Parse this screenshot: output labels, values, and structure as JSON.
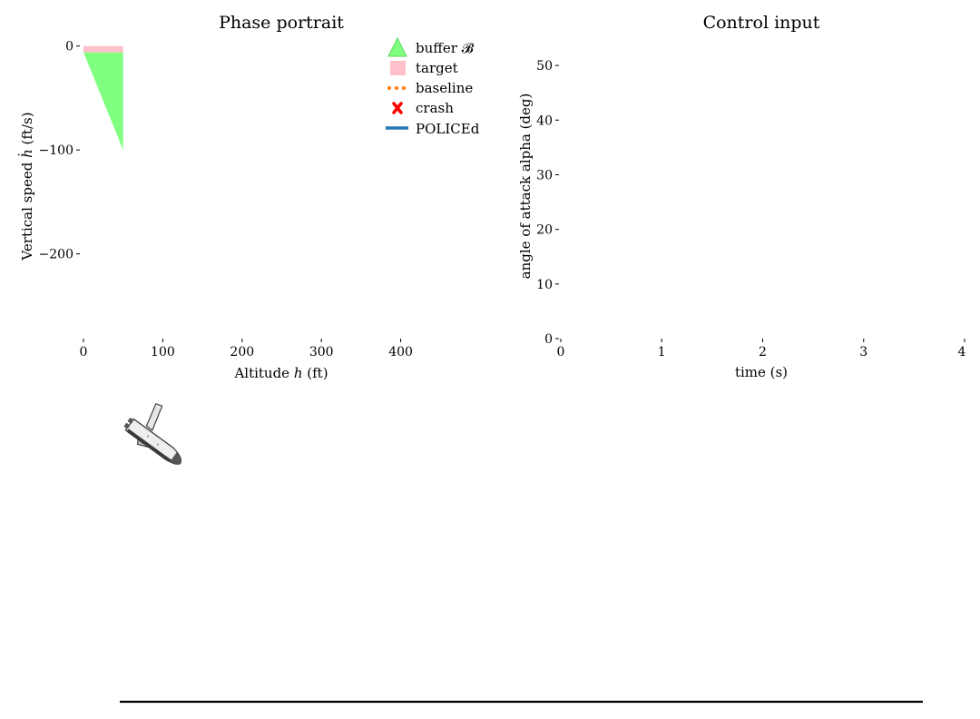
{
  "chart_data": [
    {
      "type": "area",
      "title": "Phase portrait",
      "xlabel": "Altitude ℎ (ft)",
      "ylabel": "Vertical speed ℎ̇ (ft/s)",
      "xlim": [
        0,
        500
      ],
      "ylim": [
        -285,
        5
      ],
      "xticks": [
        "0",
        "100",
        "200",
        "300",
        "400"
      ],
      "yticks": [
        "0",
        "−100",
        "−200"
      ],
      "xtick_values": [
        0,
        100,
        200,
        300,
        400
      ],
      "ytick_values": [
        0,
        -100,
        -200
      ],
      "grid": false,
      "legend_position": "top-right",
      "legend": [
        {
          "label": "buffer 𝓑",
          "marker": "triangle",
          "color": "#80ff80"
        },
        {
          "label": "target",
          "marker": "square",
          "color": "#ffc0cb"
        },
        {
          "label": "baseline",
          "marker": "dotted-line",
          "color": "#ff7f0e"
        },
        {
          "label": "crash",
          "marker": "x",
          "color": "#ff0000"
        },
        {
          "label": "POLICEd",
          "marker": "line",
          "color": "#1f77b4"
        }
      ],
      "buffer": {
        "name": "buffer 𝓑",
        "color": "#80ff80",
        "vertices": [
          [
            0,
            -6
          ],
          [
            50,
            -6
          ],
          [
            50,
            -100
          ]
        ]
      },
      "target": {
        "name": "target",
        "color": "#ffc0cb",
        "x": [
          0,
          50
        ],
        "y": [
          -6,
          0
        ]
      }
    },
    {
      "type": "line",
      "title": "Control input",
      "xlabel": "time (s)",
      "ylabel": "angle of attack alpha (deg)",
      "xlim": [
        0,
        4
      ],
      "ylim": [
        0,
        56
      ],
      "xticks": [
        "0",
        "1",
        "2",
        "3",
        "4"
      ],
      "yticks": [
        "0",
        "10",
        "20",
        "30",
        "40",
        "50"
      ],
      "xtick_values": [
        0,
        1,
        2,
        3,
        4
      ],
      "ytick_values": [
        0,
        10,
        20,
        30,
        40,
        50
      ],
      "grid": false,
      "series": []
    }
  ],
  "scene": {
    "shuttle_icon": "space-shuttle-icon",
    "ground_color": "#000000"
  }
}
